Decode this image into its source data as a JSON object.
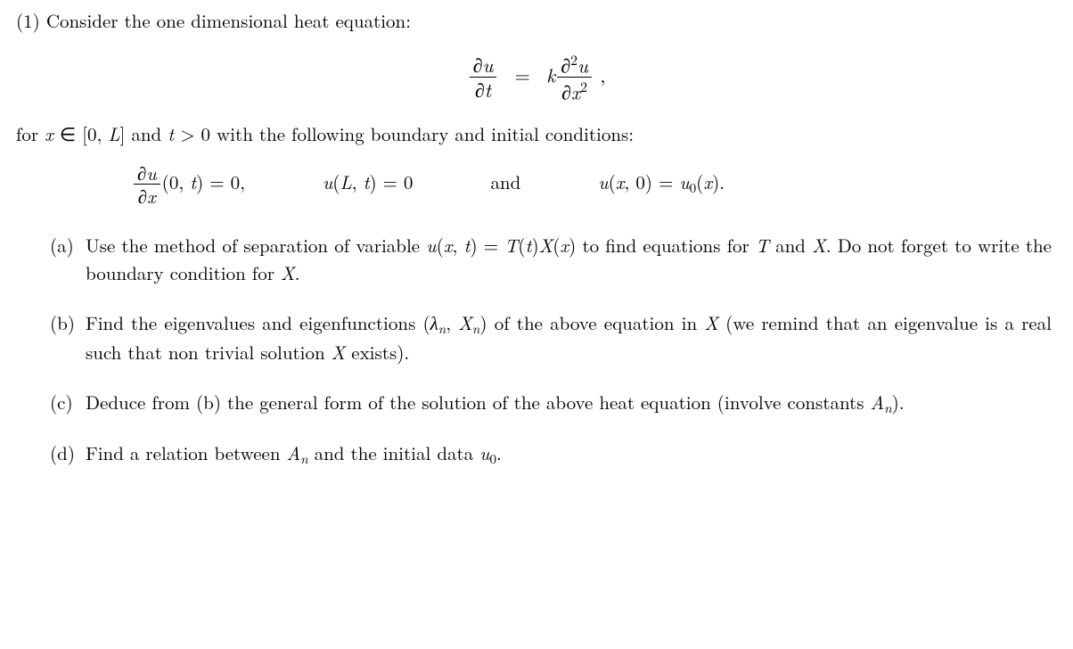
{
  "problem": {
    "number": "(1)",
    "intro": "Consider the one dimensional heat equation:",
    "equation_html": "<span class='frac'><span class='num'><span class='italic'>∂u</span></span><span class='den'><span class='italic'>∂t</span></span></span> &nbsp;=&nbsp; <span class='mathk'>k</span><span class='frac'><span class='num'><span class='italic'>∂</span><span class='sup'>2</span><span class='italic'>u</span></span><span class='den'><span class='italic'>∂x</span><span class='sup'>2</span></span></span> ,",
    "domain_html": "for <span class='italic'>x</span> ∈ [0, <span class='italic'>L</span>] and <span class='italic'>t</span> &gt; 0 with the following boundary and initial conditions:",
    "conditions": {
      "c1_html": "<span class='frac'><span class='num'><span class='italic'>∂u</span></span><span class='den'><span class='italic'>∂x</span></span></span>(0, <span class='italic'>t</span>) = 0,",
      "c2_html": "<span class='italic'>u</span>(<span class='italic'>L</span>, <span class='italic'>t</span>) = 0",
      "and": "and",
      "c3_html": "<span class='italic'>u</span>(<span class='italic'>x</span>, 0) = <span class='italic'>u</span><span class='sub'>0</span>(<span class='italic'>x</span>)."
    },
    "parts": [
      {
        "label": "(a)",
        "body_html": "Use the method of separation of variable <span class='italic'>u</span>(<span class='italic'>x</span>, <span class='italic'>t</span>) = <span class='italic'>T</span>(<span class='italic'>t</span>)<span class='italic'>X</span>(<span class='italic'>x</span>) to find equations for <span class='italic'>T</span> and <span class='italic'>X</span>. Do not forget to write the boundary condition for <span class='italic'>X</span>."
      },
      {
        "label": "(b)",
        "body_html": "Find the eigenvalues and eigenfunctions (<span class='italic'>λ</span><span class='sub italic'>n</span>, <span class='italic'>X</span><span class='sub italic'>n</span>) of the above equation in <span class='italic'>X</span> (we remind that an eigenvalue is a real such that non trivial solution <span class='italic'>X</span> exists)."
      },
      {
        "label": "(c)",
        "body_html": "Deduce from (b) the general form of the solution of the above heat equation (involve constants <span class='italic'>A</span><span class='sub italic'>n</span>)."
      },
      {
        "label": "(d)",
        "body_html": "Find a relation between <span class='italic'>A</span><span class='sub italic'>n</span> and the initial data <span class='italic'>u</span><span class='sub'>0</span>."
      }
    ]
  },
  "style": {
    "font_family": "Latin Modern Roman, Computer Modern, Georgia, serif",
    "font_size_pt": 16,
    "text_color": "#000000",
    "background_color": "#ffffff"
  }
}
